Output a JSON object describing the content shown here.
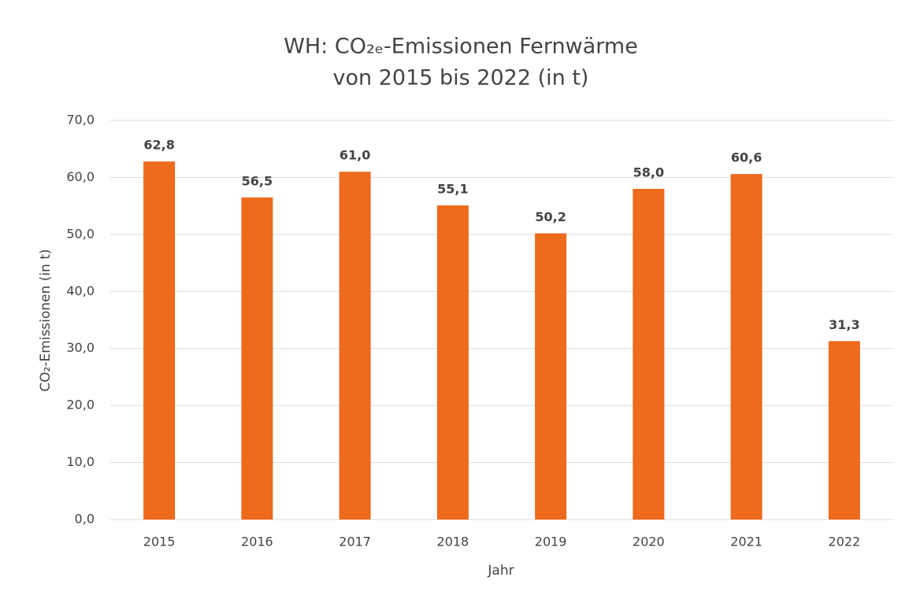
{
  "chart_data": {
    "type": "bar",
    "title": "WH: CO₂ₑ-Emissionen Fernwärme",
    "subtitle": "von 2015 bis 2022 (in t)",
    "x_label": "Jahr",
    "y_label": "CO₂-Emissionen (in t)",
    "categories": [
      "2015",
      "2016",
      "2017",
      "2018",
      "2019",
      "2020",
      "2021",
      "2022"
    ],
    "values": [
      62.8,
      56.5,
      61.0,
      55.1,
      50.2,
      58.0,
      60.6,
      31.3
    ],
    "value_labels": [
      "62,8",
      "56,5",
      "61,0",
      "55,1",
      "50,2",
      "58,0",
      "60,6",
      "31,3"
    ],
    "color": "#ee6a1c",
    "ylim": [
      0,
      70
    ],
    "yticks": [
      {
        "value": 0,
        "label": "0,0"
      },
      {
        "value": 10,
        "label": "10,0"
      },
      {
        "value": 20,
        "label": "20,0"
      },
      {
        "value": 30,
        "label": "30,0"
      },
      {
        "value": 40,
        "label": "40,0"
      },
      {
        "value": 50,
        "label": "50,0"
      },
      {
        "value": 60,
        "label": "60,0"
      },
      {
        "value": 70,
        "label": "70,0"
      }
    ],
    "grid": true
  }
}
